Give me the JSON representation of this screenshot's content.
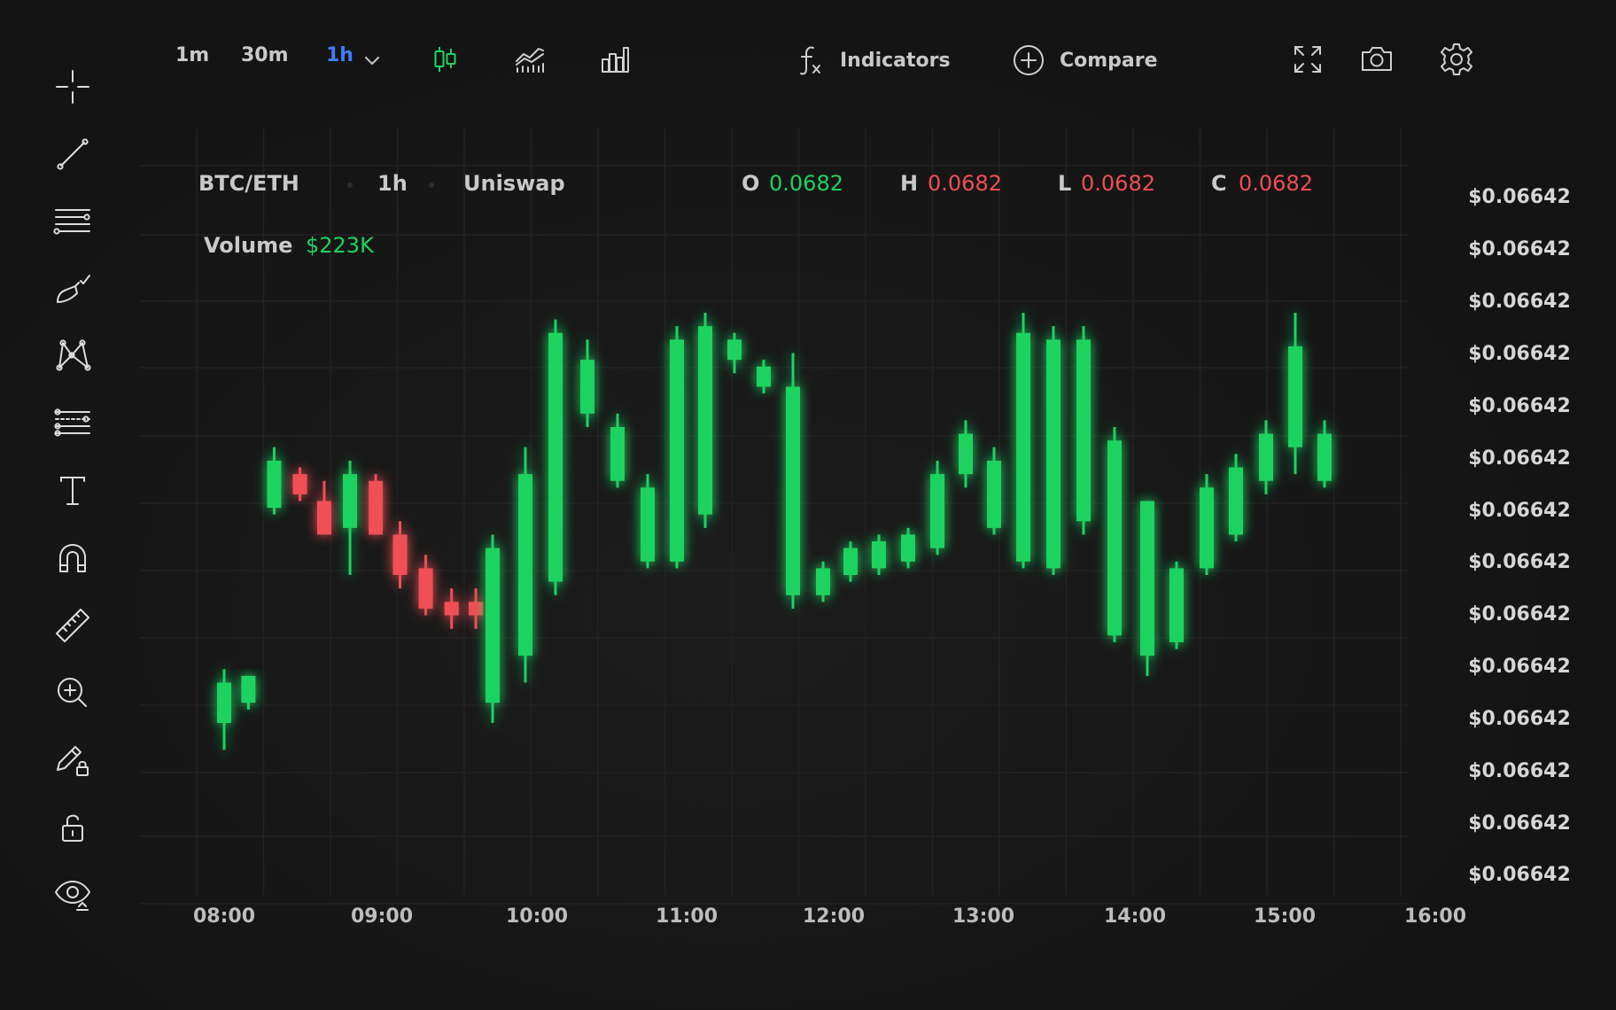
{
  "toolbar": {
    "timeframes": [
      "1m",
      "30m",
      "1h"
    ],
    "active_timeframe": "1h",
    "indicators_label": "Indicators",
    "compare_label": "Compare"
  },
  "left_toolbar": {
    "tools": [
      "crosshair-icon",
      "trend-line-icon",
      "horizontal-lines-icon",
      "brush-icon",
      "pattern-icon",
      "fib-levels-icon",
      "text-icon",
      "magnet-icon",
      "ruler-icon",
      "zoom-in-icon",
      "pencil-lock-icon",
      "unlock-icon",
      "eye-icon"
    ]
  },
  "info": {
    "pair": "BTC/ETH",
    "interval": "1h",
    "exchange": "Uniswap",
    "o_label": "O",
    "o_value": "0.0682",
    "h_label": "H",
    "h_value": "0.0682",
    "l_label": "L",
    "l_value": "0.0682",
    "c_label": "C",
    "c_value": "0.0682",
    "volume_label": "Volume",
    "volume_value": "$223K"
  },
  "colors": {
    "up": "#1fd35f",
    "down": "#ef4f55",
    "accent": "#3f7ef6",
    "background": "#141414"
  },
  "chart_data": {
    "type": "candlestick",
    "y_tick_labels": [
      "$0.06642",
      "$0.06642",
      "$0.06642",
      "$0.06642",
      "$0.06642",
      "$0.06642",
      "$0.06642",
      "$0.06642",
      "$0.06642",
      "$0.06642",
      "$0.06642",
      "$0.06642",
      "$0.06642",
      "$0.06642"
    ],
    "x_tick_labels": [
      "08:00",
      "09:00",
      "10:00",
      "11:00",
      "12:00",
      "13:00",
      "14:00",
      "15:00",
      "16:00"
    ],
    "x_range_hours": [
      7.75,
      16
    ],
    "y_range": [
      0,
      100
    ],
    "grid": true,
    "candles": [
      {
        "t": 8.0,
        "o": 17,
        "h": 25,
        "l": 13,
        "c": 23
      },
      {
        "t": 8.16,
        "o": 20,
        "h": 24,
        "l": 19,
        "c": 24
      },
      {
        "t": 8.33,
        "o": 49,
        "h": 58,
        "l": 48,
        "c": 56
      },
      {
        "t": 8.5,
        "o": 54,
        "h": 55,
        "l": 50,
        "c": 51
      },
      {
        "t": 8.66,
        "o": 50,
        "h": 53,
        "l": 45,
        "c": 45
      },
      {
        "t": 8.83,
        "o": 46,
        "h": 56,
        "l": 39,
        "c": 54
      },
      {
        "t": 9.0,
        "o": 53,
        "h": 54,
        "l": 45,
        "c": 45
      },
      {
        "t": 9.16,
        "o": 45,
        "h": 47,
        "l": 37,
        "c": 39
      },
      {
        "t": 9.33,
        "o": 40,
        "h": 42,
        "l": 33,
        "c": 34
      },
      {
        "t": 9.5,
        "o": 35,
        "h": 37,
        "l": 31,
        "c": 33
      },
      {
        "t": 9.66,
        "o": 35,
        "h": 37,
        "l": 31,
        "c": 33
      }
    ]
  }
}
